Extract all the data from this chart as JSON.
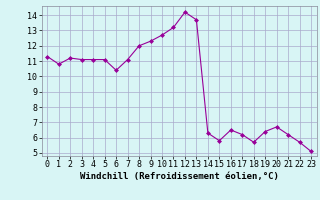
{
  "x": [
    0,
    1,
    2,
    3,
    4,
    5,
    6,
    7,
    8,
    9,
    10,
    11,
    12,
    13,
    14,
    15,
    16,
    17,
    18,
    19,
    20,
    21,
    22,
    23
  ],
  "y": [
    11.3,
    10.8,
    11.2,
    11.1,
    11.1,
    11.1,
    10.4,
    11.1,
    12.0,
    12.3,
    12.7,
    13.2,
    14.2,
    13.7,
    6.3,
    5.8,
    6.5,
    6.2,
    5.7,
    6.4,
    6.7,
    6.2,
    5.7,
    5.1
  ],
  "line_color": "#990099",
  "marker": "D",
  "marker_size": 2.0,
  "bg_color": "#d8f5f5",
  "grid_color": "#aaaacc",
  "xlabel": "Windchill (Refroidissement éolien,°C)",
  "xlabel_fontsize": 6.5,
  "tick_fontsize": 6.0,
  "ylim": [
    4.8,
    14.6
  ],
  "yticks": [
    5,
    6,
    7,
    8,
    9,
    10,
    11,
    12,
    13,
    14
  ],
  "xlim": [
    -0.5,
    23.5
  ],
  "xticks": [
    0,
    1,
    2,
    3,
    4,
    5,
    6,
    7,
    8,
    9,
    10,
    11,
    12,
    13,
    14,
    15,
    16,
    17,
    18,
    19,
    20,
    21,
    22,
    23
  ]
}
